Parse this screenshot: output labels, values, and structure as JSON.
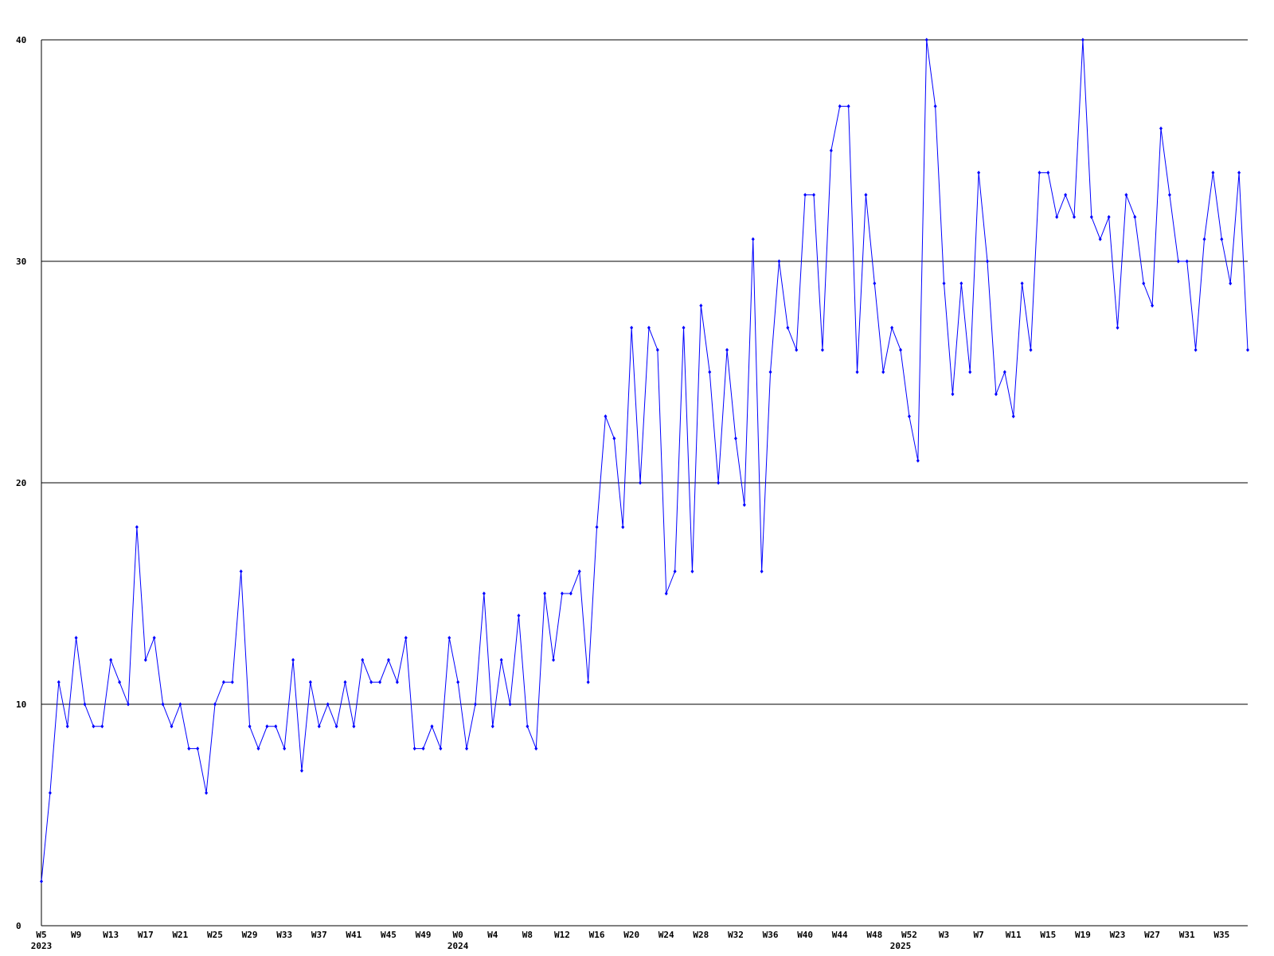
{
  "chart_data": {
    "type": "line",
    "color": "#0000ff",
    "ylim": [
      0,
      40
    ],
    "yticks": [
      0,
      10,
      20,
      30,
      40
    ],
    "grid": true,
    "categories": [
      "W5",
      null,
      null,
      null,
      "W9",
      null,
      null,
      null,
      "W13",
      null,
      null,
      null,
      "W17",
      null,
      null,
      null,
      "W21",
      null,
      null,
      null,
      "W25",
      null,
      null,
      null,
      "W29",
      null,
      null,
      null,
      "W33",
      null,
      null,
      null,
      "W37",
      null,
      null,
      null,
      "W41",
      null,
      null,
      null,
      "W45",
      null,
      null,
      null,
      "W49",
      null,
      null,
      null,
      "W0",
      null,
      null,
      null,
      "W4",
      null,
      null,
      null,
      "W8",
      null,
      null,
      null,
      "W12",
      null,
      null,
      null,
      "W16",
      null,
      null,
      null,
      "W20",
      null,
      null,
      null,
      "W24",
      null,
      null,
      null,
      "W28",
      null,
      null,
      null,
      "W32",
      null,
      null,
      null,
      "W36",
      null,
      null,
      null,
      "W40",
      null,
      null,
      null,
      "W44",
      null,
      null,
      null,
      "W48",
      null,
      null,
      null,
      "W52",
      null,
      null,
      null,
      "W3",
      null,
      null,
      null,
      "W7",
      null,
      null,
      null,
      "W11",
      null,
      null,
      null,
      "W15",
      null,
      null,
      null,
      "W19",
      null,
      null,
      null,
      "W23",
      null,
      null,
      null,
      "W27",
      null,
      null,
      null,
      "W31",
      null,
      null,
      null,
      "W35",
      null,
      null,
      null
    ],
    "year_labels": [
      "2023",
      null,
      null,
      null,
      null,
      null,
      null,
      null,
      null,
      null,
      null,
      null,
      null,
      null,
      null,
      null,
      null,
      null,
      null,
      null,
      null,
      null,
      null,
      null,
      null,
      null,
      null,
      null,
      null,
      null,
      null,
      null,
      null,
      null,
      null,
      null,
      null,
      null,
      null,
      null,
      null,
      null,
      null,
      null,
      null,
      null,
      null,
      null,
      "2024",
      null,
      null,
      null,
      null,
      null,
      null,
      null,
      null,
      null,
      null,
      null,
      null,
      null,
      null,
      null,
      null,
      null,
      null,
      null,
      null,
      null,
      null,
      null,
      null,
      null,
      null,
      null,
      null,
      null,
      null,
      null,
      null,
      null,
      null,
      null,
      null,
      null,
      null,
      null,
      null,
      null,
      null,
      null,
      null,
      null,
      null,
      null,
      null,
      null,
      null,
      "2025",
      null,
      null,
      null,
      null,
      null,
      null,
      null,
      null,
      null,
      null,
      null,
      null,
      null,
      null,
      null,
      null,
      null,
      null,
      null,
      null,
      null,
      null,
      null,
      null,
      null,
      null,
      null,
      null,
      null,
      null,
      null,
      null,
      null,
      null,
      null,
      null,
      null
    ],
    "values": [
      2,
      6,
      11,
      9,
      13,
      10,
      9,
      9,
      12,
      11,
      10,
      18,
      12,
      13,
      10,
      9,
      10,
      8,
      8,
      6,
      10,
      11,
      11,
      16,
      9,
      8,
      9,
      9,
      8,
      12,
      7,
      11,
      9,
      10,
      9,
      11,
      9,
      12,
      11,
      11,
      12,
      11,
      13,
      8,
      8,
      9,
      8,
      13,
      11,
      8,
      10,
      15,
      9,
      12,
      10,
      14,
      9,
      8,
      15,
      12,
      15,
      15,
      16,
      11,
      18,
      23,
      22,
      18,
      27,
      20,
      27,
      26,
      15,
      16,
      27,
      16,
      28,
      25,
      20,
      26,
      22,
      19,
      31,
      16,
      25,
      30,
      27,
      26,
      33,
      33,
      26,
      35,
      37,
      37,
      25,
      33,
      29,
      25,
      27,
      26,
      23,
      21,
      40,
      37,
      29,
      24,
      29,
      25,
      34,
      30,
      24,
      25,
      23,
      29,
      26,
      34,
      34,
      32,
      33,
      32,
      40,
      32,
      31,
      32,
      27,
      33,
      32,
      29,
      28,
      36,
      33,
      30,
      30,
      26,
      31,
      34,
      31,
      29,
      34,
      26
    ]
  }
}
